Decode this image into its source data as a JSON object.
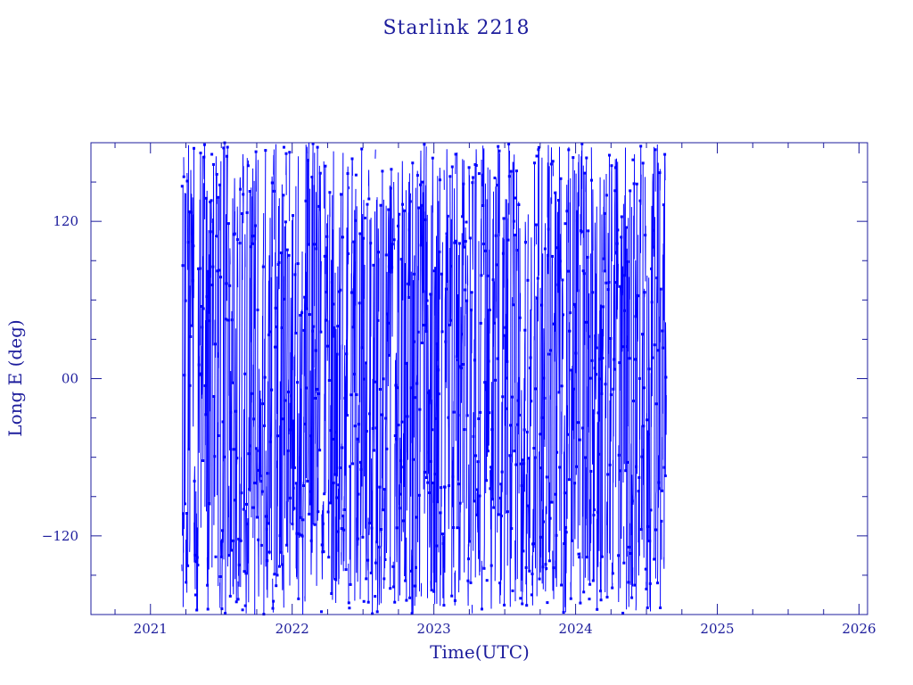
{
  "chart_data": {
    "type": "line",
    "title": "Starlink 2218",
    "xlabel": "Time(UTC)",
    "ylabel": "Long E (deg)",
    "xlim": [
      2020.58,
      2026.06
    ],
    "ylim": [
      -180,
      180
    ],
    "x_ticks": [
      2021,
      2022,
      2023,
      2024,
      2025,
      2026
    ],
    "x_tick_labels": [
      "2021",
      "2022",
      "2023",
      "2024",
      "2025",
      "2026"
    ],
    "y_ticks": [
      -120,
      0,
      120
    ],
    "y_tick_labels": [
      "−120",
      "00",
      "120"
    ],
    "data_range": {
      "x_start": 2021.22,
      "x_end": 2024.64
    },
    "grid": false,
    "legend": "none",
    "colors": {
      "series": "#0000ff",
      "axes": "#1c1c9c"
    }
  }
}
